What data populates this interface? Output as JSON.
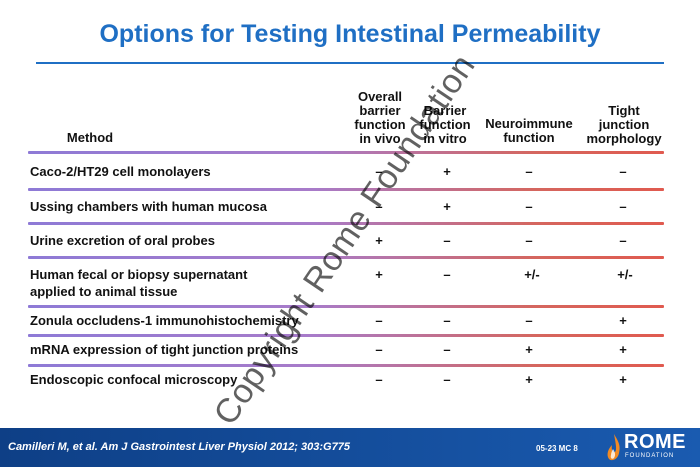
{
  "title": "Options for Testing Intestinal Permeability",
  "table": {
    "headers": {
      "method": "Method",
      "columns": [
        "Overall\nbarrier\nfunction\nin vivo",
        "Barrier\nfunction\nin vitro",
        "Neuroimmune\nfunction",
        "Tight\njunction\nmorphology"
      ]
    },
    "rows": [
      {
        "method": "Caco-2/HT29 cell monolayers",
        "values": [
          "–",
          "+",
          "–",
          "–"
        ]
      },
      {
        "method": "Ussing chambers with human mucosa",
        "values": [
          "–",
          "+",
          "–",
          "–"
        ]
      },
      {
        "method": "Urine excretion of oral probes",
        "values": [
          "+",
          "–",
          "–",
          "–"
        ]
      },
      {
        "method": "Human fecal or biopsy supernatant\napplied to animal tissue",
        "values": [
          "+",
          "–",
          "+/-",
          "+/-"
        ]
      },
      {
        "method": "Zonula occludens-1 immunohistochemistry",
        "values": [
          "–",
          "–",
          "–",
          "+"
        ]
      },
      {
        "method": "mRNA expression of tight junction proteins",
        "values": [
          "–",
          "–",
          "+",
          "+"
        ]
      },
      {
        "method": "Endoscopic confocal microscopy",
        "values": [
          "–",
          "–",
          "+",
          "+"
        ]
      }
    ]
  },
  "watermark": "Copyright Rome Foundation",
  "footer": {
    "citation": "Camilleri M, et al. Am J Gastrointest Liver Physiol 2012; 303:G775",
    "slide_code": "05-23  MC 8",
    "logo_text": "ROME",
    "logo_sub": "FOUNDATION"
  },
  "colors": {
    "title": "#1f6fc4",
    "footer_bg": "#0e3f86",
    "separator_start": "#8e7ad6",
    "separator_end": "#e05a4f"
  }
}
